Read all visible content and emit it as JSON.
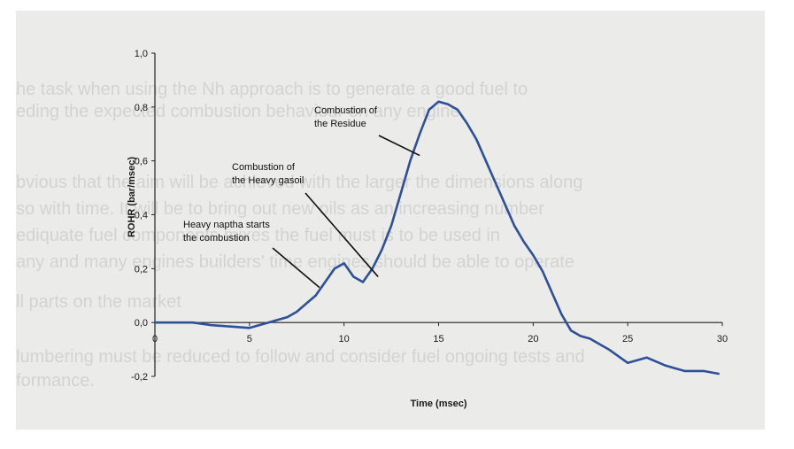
{
  "chart_data": {
    "type": "line",
    "xlabel": "Time (msec)",
    "ylabel": "ROHR (bar/msec)",
    "xlim": [
      0,
      30
    ],
    "ylim": [
      -0.2,
      1.0
    ],
    "xticks": [
      "0",
      "5",
      "10",
      "15",
      "20",
      "25",
      "30"
    ],
    "yticks": [
      "-0,2",
      "0,0",
      "0,2",
      "0,4",
      "0,6",
      "0,8",
      "1,0"
    ],
    "grid": false,
    "legend": "none",
    "line_color": "#2e4f9a",
    "x": [
      0,
      1,
      2,
      3,
      4,
      5,
      5.5,
      6,
      6.5,
      7,
      7.5,
      8,
      8.5,
      9,
      9.5,
      10,
      10.5,
      11,
      11.5,
      12,
      12.5,
      13,
      13.5,
      14,
      14.5,
      15,
      15.5,
      16,
      16.5,
      17,
      17.5,
      18,
      18.5,
      19,
      19.5,
      20,
      20.5,
      21,
      21.5,
      22,
      22.5,
      23,
      24,
      25,
      26,
      27,
      28,
      29,
      29.8
    ],
    "y": [
      0.0,
      0.0,
      0.0,
      -0.01,
      -0.015,
      -0.02,
      -0.01,
      0.0,
      0.01,
      0.02,
      0.04,
      0.07,
      0.1,
      0.15,
      0.2,
      0.22,
      0.17,
      0.15,
      0.2,
      0.27,
      0.36,
      0.48,
      0.6,
      0.7,
      0.79,
      0.82,
      0.81,
      0.79,
      0.74,
      0.68,
      0.6,
      0.52,
      0.44,
      0.36,
      0.3,
      0.25,
      0.19,
      0.11,
      0.03,
      -0.03,
      -0.05,
      -0.06,
      -0.1,
      -0.15,
      -0.13,
      -0.16,
      -0.18,
      -0.18,
      -0.19
    ],
    "annotations": [
      {
        "lines": [
          "Combustion of",
          "the Residue"
        ],
        "arrow_to": [
          14.0,
          0.62
        ]
      },
      {
        "lines": [
          "Combustion of",
          "the Heavy gasoil"
        ],
        "arrow_to": [
          11.8,
          0.17
        ]
      },
      {
        "lines": [
          "Heavy naptha starts",
          "the combustion"
        ],
        "arrow_to": [
          8.7,
          0.13
        ]
      }
    ]
  },
  "background_text": [
    "he task when using the Nh approach is to generate a good fuel to",
    "eding the expected combustion behaviour on any engine.",
    "bvious that the aim will be achieved with the larger the dimensions along",
    "so with time. It will be to bring out new oils as an increasing number",
    "ediquate fuel components mixes the fuel must is to be used in",
    "any and many engines builders' time engines should be able to operate",
    "ll parts on the market",
    "lumbering must be reduced to follow and consider fuel ongoing tests and",
    "formance."
  ]
}
